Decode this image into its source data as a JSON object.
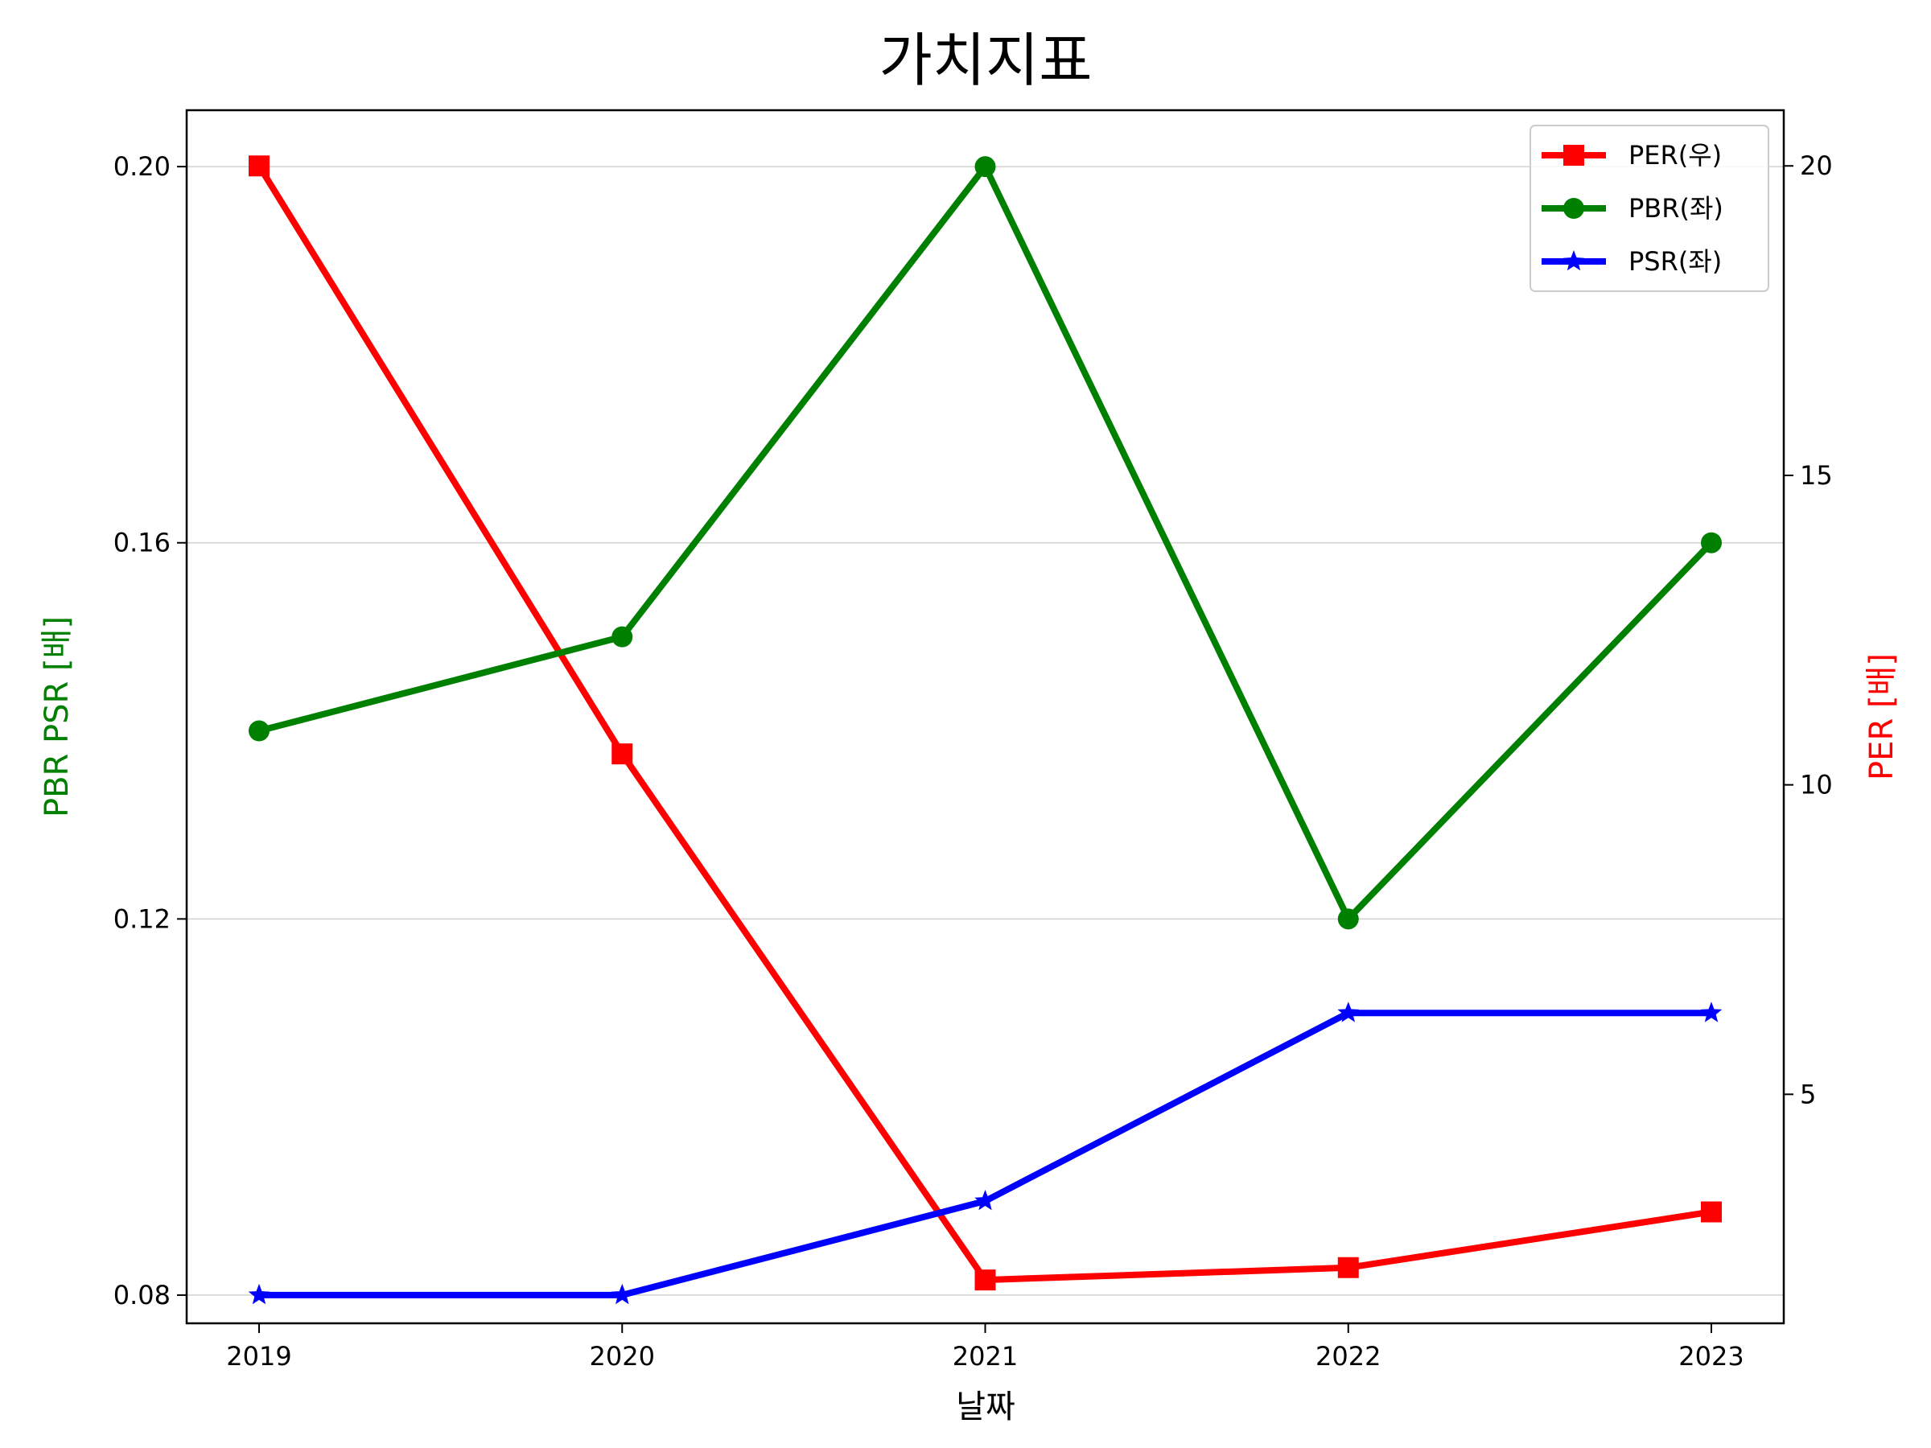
{
  "chart_data": {
    "type": "line",
    "title": "가치지표",
    "xlabel": "날짜",
    "ylabel_left": "PBR PSR [배]",
    "ylabel_right": "PER [배]",
    "ylabel_left_color": "#008000",
    "ylabel_right_color": "#ff0000",
    "categories": [
      "2019",
      "2020",
      "2021",
      "2022",
      "2023"
    ],
    "ylim_left": [
      0.077,
      0.206
    ],
    "ylim_right": [
      1.3,
      20.9
    ],
    "yticks_left": [
      0.08,
      0.12,
      0.16,
      0.2
    ],
    "yticks_left_labels": [
      "0.08",
      "0.12",
      "0.16",
      "0.20"
    ],
    "yticks_right": [
      5,
      10,
      15,
      20
    ],
    "yticks_right_labels": [
      "5",
      "10",
      "15",
      "20"
    ],
    "grid": "horizontal",
    "legend_position": "top-right",
    "series": [
      {
        "name": "PER(우)",
        "axis": "right",
        "color": "#ff0000",
        "marker": "square",
        "values": [
          20,
          10.5,
          2.0,
          2.2,
          3.1
        ]
      },
      {
        "name": "PBR(좌)",
        "axis": "left",
        "color": "#008000",
        "marker": "circle",
        "values": [
          0.14,
          0.15,
          0.2,
          0.12,
          0.16
        ]
      },
      {
        "name": "PSR(좌)",
        "axis": "left",
        "color": "#0000ff",
        "marker": "star",
        "values": [
          0.08,
          0.08,
          0.09,
          0.11,
          0.11
        ]
      }
    ]
  }
}
